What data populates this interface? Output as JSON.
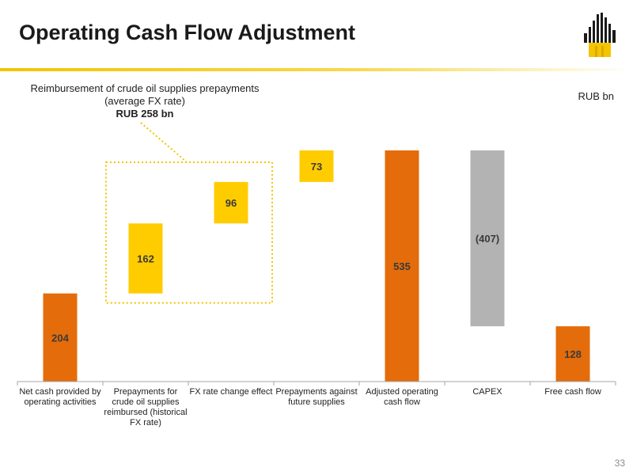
{
  "header": {
    "title": "Operating Cash Flow Adjustment",
    "page_number": "33"
  },
  "annotation": {
    "line1": "Reimbursement of crude oil supplies prepayments",
    "line2": "(average FX rate)",
    "line3": "RUB 258 bn"
  },
  "colors": {
    "orange": "#e46c0a",
    "yellow": "#ffcc00",
    "grey": "#b3b3b3",
    "dotted_box": "#f2c500",
    "title_rule": "#f2c500"
  },
  "chart_data": {
    "type": "bar",
    "subtype": "waterfall",
    "unit": "RUB bn",
    "categories": [
      "Net cash provided by operating activities",
      "Prepayments for crude oil supplies reimbursed (historical FX rate)",
      "FX rate change effect",
      "Prepayments against future supplies",
      "Adjusted operating cash flow",
      "CAPEX",
      "Free cash flow"
    ],
    "bars": [
      {
        "label": "204",
        "start": 0,
        "end": 204,
        "color": "orange"
      },
      {
        "label": "162",
        "start": 204,
        "end": 366,
        "color": "yellow"
      },
      {
        "label": "96",
        "start": 366,
        "end": 462,
        "color": "yellow"
      },
      {
        "label": "73",
        "start": 462,
        "end": 535,
        "color": "yellow"
      },
      {
        "label": "535",
        "start": 0,
        "end": 535,
        "color": "orange"
      },
      {
        "label": "(407)",
        "start": 128,
        "end": 535,
        "color": "grey"
      },
      {
        "label": "128",
        "start": 0,
        "end": 128,
        "color": "orange"
      }
    ],
    "highlight_group": {
      "from_index": 1,
      "to_index": 2,
      "total_label": "RUB 258 bn"
    },
    "grid": false,
    "legend": "none"
  }
}
